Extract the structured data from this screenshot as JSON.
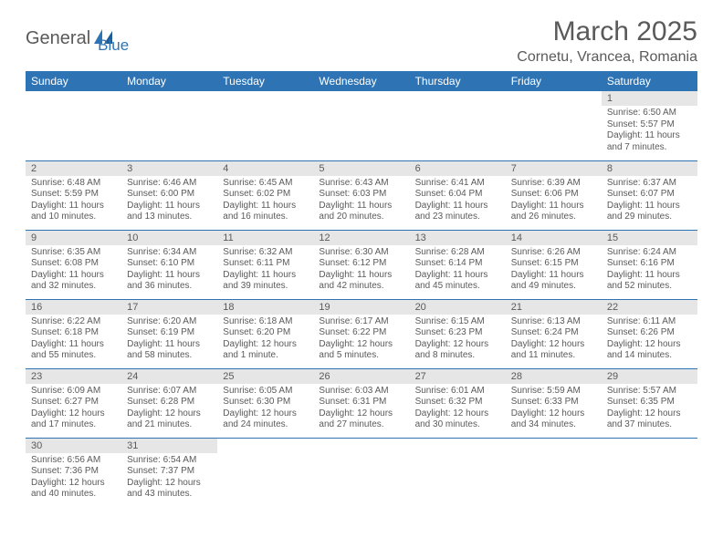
{
  "brand": {
    "name_part1": "General",
    "name_part2": "Blue"
  },
  "title": "March 2025",
  "location": "Cornetu, Vrancea, Romania",
  "colors": {
    "header_bg": "#2e74b5",
    "header_fg": "#ffffff",
    "rule": "#2e74b5",
    "daynum_bg": "#e6e6e6",
    "text": "#5a5a5a",
    "background": "#ffffff"
  },
  "days_of_week": [
    "Sunday",
    "Monday",
    "Tuesday",
    "Wednesday",
    "Thursday",
    "Friday",
    "Saturday"
  ],
  "weeks": [
    [
      null,
      null,
      null,
      null,
      null,
      null,
      {
        "n": "1",
        "sunrise": "Sunrise: 6:50 AM",
        "sunset": "Sunset: 5:57 PM",
        "daylight": "Daylight: 11 hours and 7 minutes."
      }
    ],
    [
      {
        "n": "2",
        "sunrise": "Sunrise: 6:48 AM",
        "sunset": "Sunset: 5:59 PM",
        "daylight": "Daylight: 11 hours and 10 minutes."
      },
      {
        "n": "3",
        "sunrise": "Sunrise: 6:46 AM",
        "sunset": "Sunset: 6:00 PM",
        "daylight": "Daylight: 11 hours and 13 minutes."
      },
      {
        "n": "4",
        "sunrise": "Sunrise: 6:45 AM",
        "sunset": "Sunset: 6:02 PM",
        "daylight": "Daylight: 11 hours and 16 minutes."
      },
      {
        "n": "5",
        "sunrise": "Sunrise: 6:43 AM",
        "sunset": "Sunset: 6:03 PM",
        "daylight": "Daylight: 11 hours and 20 minutes."
      },
      {
        "n": "6",
        "sunrise": "Sunrise: 6:41 AM",
        "sunset": "Sunset: 6:04 PM",
        "daylight": "Daylight: 11 hours and 23 minutes."
      },
      {
        "n": "7",
        "sunrise": "Sunrise: 6:39 AM",
        "sunset": "Sunset: 6:06 PM",
        "daylight": "Daylight: 11 hours and 26 minutes."
      },
      {
        "n": "8",
        "sunrise": "Sunrise: 6:37 AM",
        "sunset": "Sunset: 6:07 PM",
        "daylight": "Daylight: 11 hours and 29 minutes."
      }
    ],
    [
      {
        "n": "9",
        "sunrise": "Sunrise: 6:35 AM",
        "sunset": "Sunset: 6:08 PM",
        "daylight": "Daylight: 11 hours and 32 minutes."
      },
      {
        "n": "10",
        "sunrise": "Sunrise: 6:34 AM",
        "sunset": "Sunset: 6:10 PM",
        "daylight": "Daylight: 11 hours and 36 minutes."
      },
      {
        "n": "11",
        "sunrise": "Sunrise: 6:32 AM",
        "sunset": "Sunset: 6:11 PM",
        "daylight": "Daylight: 11 hours and 39 minutes."
      },
      {
        "n": "12",
        "sunrise": "Sunrise: 6:30 AM",
        "sunset": "Sunset: 6:12 PM",
        "daylight": "Daylight: 11 hours and 42 minutes."
      },
      {
        "n": "13",
        "sunrise": "Sunrise: 6:28 AM",
        "sunset": "Sunset: 6:14 PM",
        "daylight": "Daylight: 11 hours and 45 minutes."
      },
      {
        "n": "14",
        "sunrise": "Sunrise: 6:26 AM",
        "sunset": "Sunset: 6:15 PM",
        "daylight": "Daylight: 11 hours and 49 minutes."
      },
      {
        "n": "15",
        "sunrise": "Sunrise: 6:24 AM",
        "sunset": "Sunset: 6:16 PM",
        "daylight": "Daylight: 11 hours and 52 minutes."
      }
    ],
    [
      {
        "n": "16",
        "sunrise": "Sunrise: 6:22 AM",
        "sunset": "Sunset: 6:18 PM",
        "daylight": "Daylight: 11 hours and 55 minutes."
      },
      {
        "n": "17",
        "sunrise": "Sunrise: 6:20 AM",
        "sunset": "Sunset: 6:19 PM",
        "daylight": "Daylight: 11 hours and 58 minutes."
      },
      {
        "n": "18",
        "sunrise": "Sunrise: 6:18 AM",
        "sunset": "Sunset: 6:20 PM",
        "daylight": "Daylight: 12 hours and 1 minute."
      },
      {
        "n": "19",
        "sunrise": "Sunrise: 6:17 AM",
        "sunset": "Sunset: 6:22 PM",
        "daylight": "Daylight: 12 hours and 5 minutes."
      },
      {
        "n": "20",
        "sunrise": "Sunrise: 6:15 AM",
        "sunset": "Sunset: 6:23 PM",
        "daylight": "Daylight: 12 hours and 8 minutes."
      },
      {
        "n": "21",
        "sunrise": "Sunrise: 6:13 AM",
        "sunset": "Sunset: 6:24 PM",
        "daylight": "Daylight: 12 hours and 11 minutes."
      },
      {
        "n": "22",
        "sunrise": "Sunrise: 6:11 AM",
        "sunset": "Sunset: 6:26 PM",
        "daylight": "Daylight: 12 hours and 14 minutes."
      }
    ],
    [
      {
        "n": "23",
        "sunrise": "Sunrise: 6:09 AM",
        "sunset": "Sunset: 6:27 PM",
        "daylight": "Daylight: 12 hours and 17 minutes."
      },
      {
        "n": "24",
        "sunrise": "Sunrise: 6:07 AM",
        "sunset": "Sunset: 6:28 PM",
        "daylight": "Daylight: 12 hours and 21 minutes."
      },
      {
        "n": "25",
        "sunrise": "Sunrise: 6:05 AM",
        "sunset": "Sunset: 6:30 PM",
        "daylight": "Daylight: 12 hours and 24 minutes."
      },
      {
        "n": "26",
        "sunrise": "Sunrise: 6:03 AM",
        "sunset": "Sunset: 6:31 PM",
        "daylight": "Daylight: 12 hours and 27 minutes."
      },
      {
        "n": "27",
        "sunrise": "Sunrise: 6:01 AM",
        "sunset": "Sunset: 6:32 PM",
        "daylight": "Daylight: 12 hours and 30 minutes."
      },
      {
        "n": "28",
        "sunrise": "Sunrise: 5:59 AM",
        "sunset": "Sunset: 6:33 PM",
        "daylight": "Daylight: 12 hours and 34 minutes."
      },
      {
        "n": "29",
        "sunrise": "Sunrise: 5:57 AM",
        "sunset": "Sunset: 6:35 PM",
        "daylight": "Daylight: 12 hours and 37 minutes."
      }
    ],
    [
      {
        "n": "30",
        "sunrise": "Sunrise: 6:56 AM",
        "sunset": "Sunset: 7:36 PM",
        "daylight": "Daylight: 12 hours and 40 minutes."
      },
      {
        "n": "31",
        "sunrise": "Sunrise: 6:54 AM",
        "sunset": "Sunset: 7:37 PM",
        "daylight": "Daylight: 12 hours and 43 minutes."
      },
      null,
      null,
      null,
      null,
      null
    ]
  ]
}
